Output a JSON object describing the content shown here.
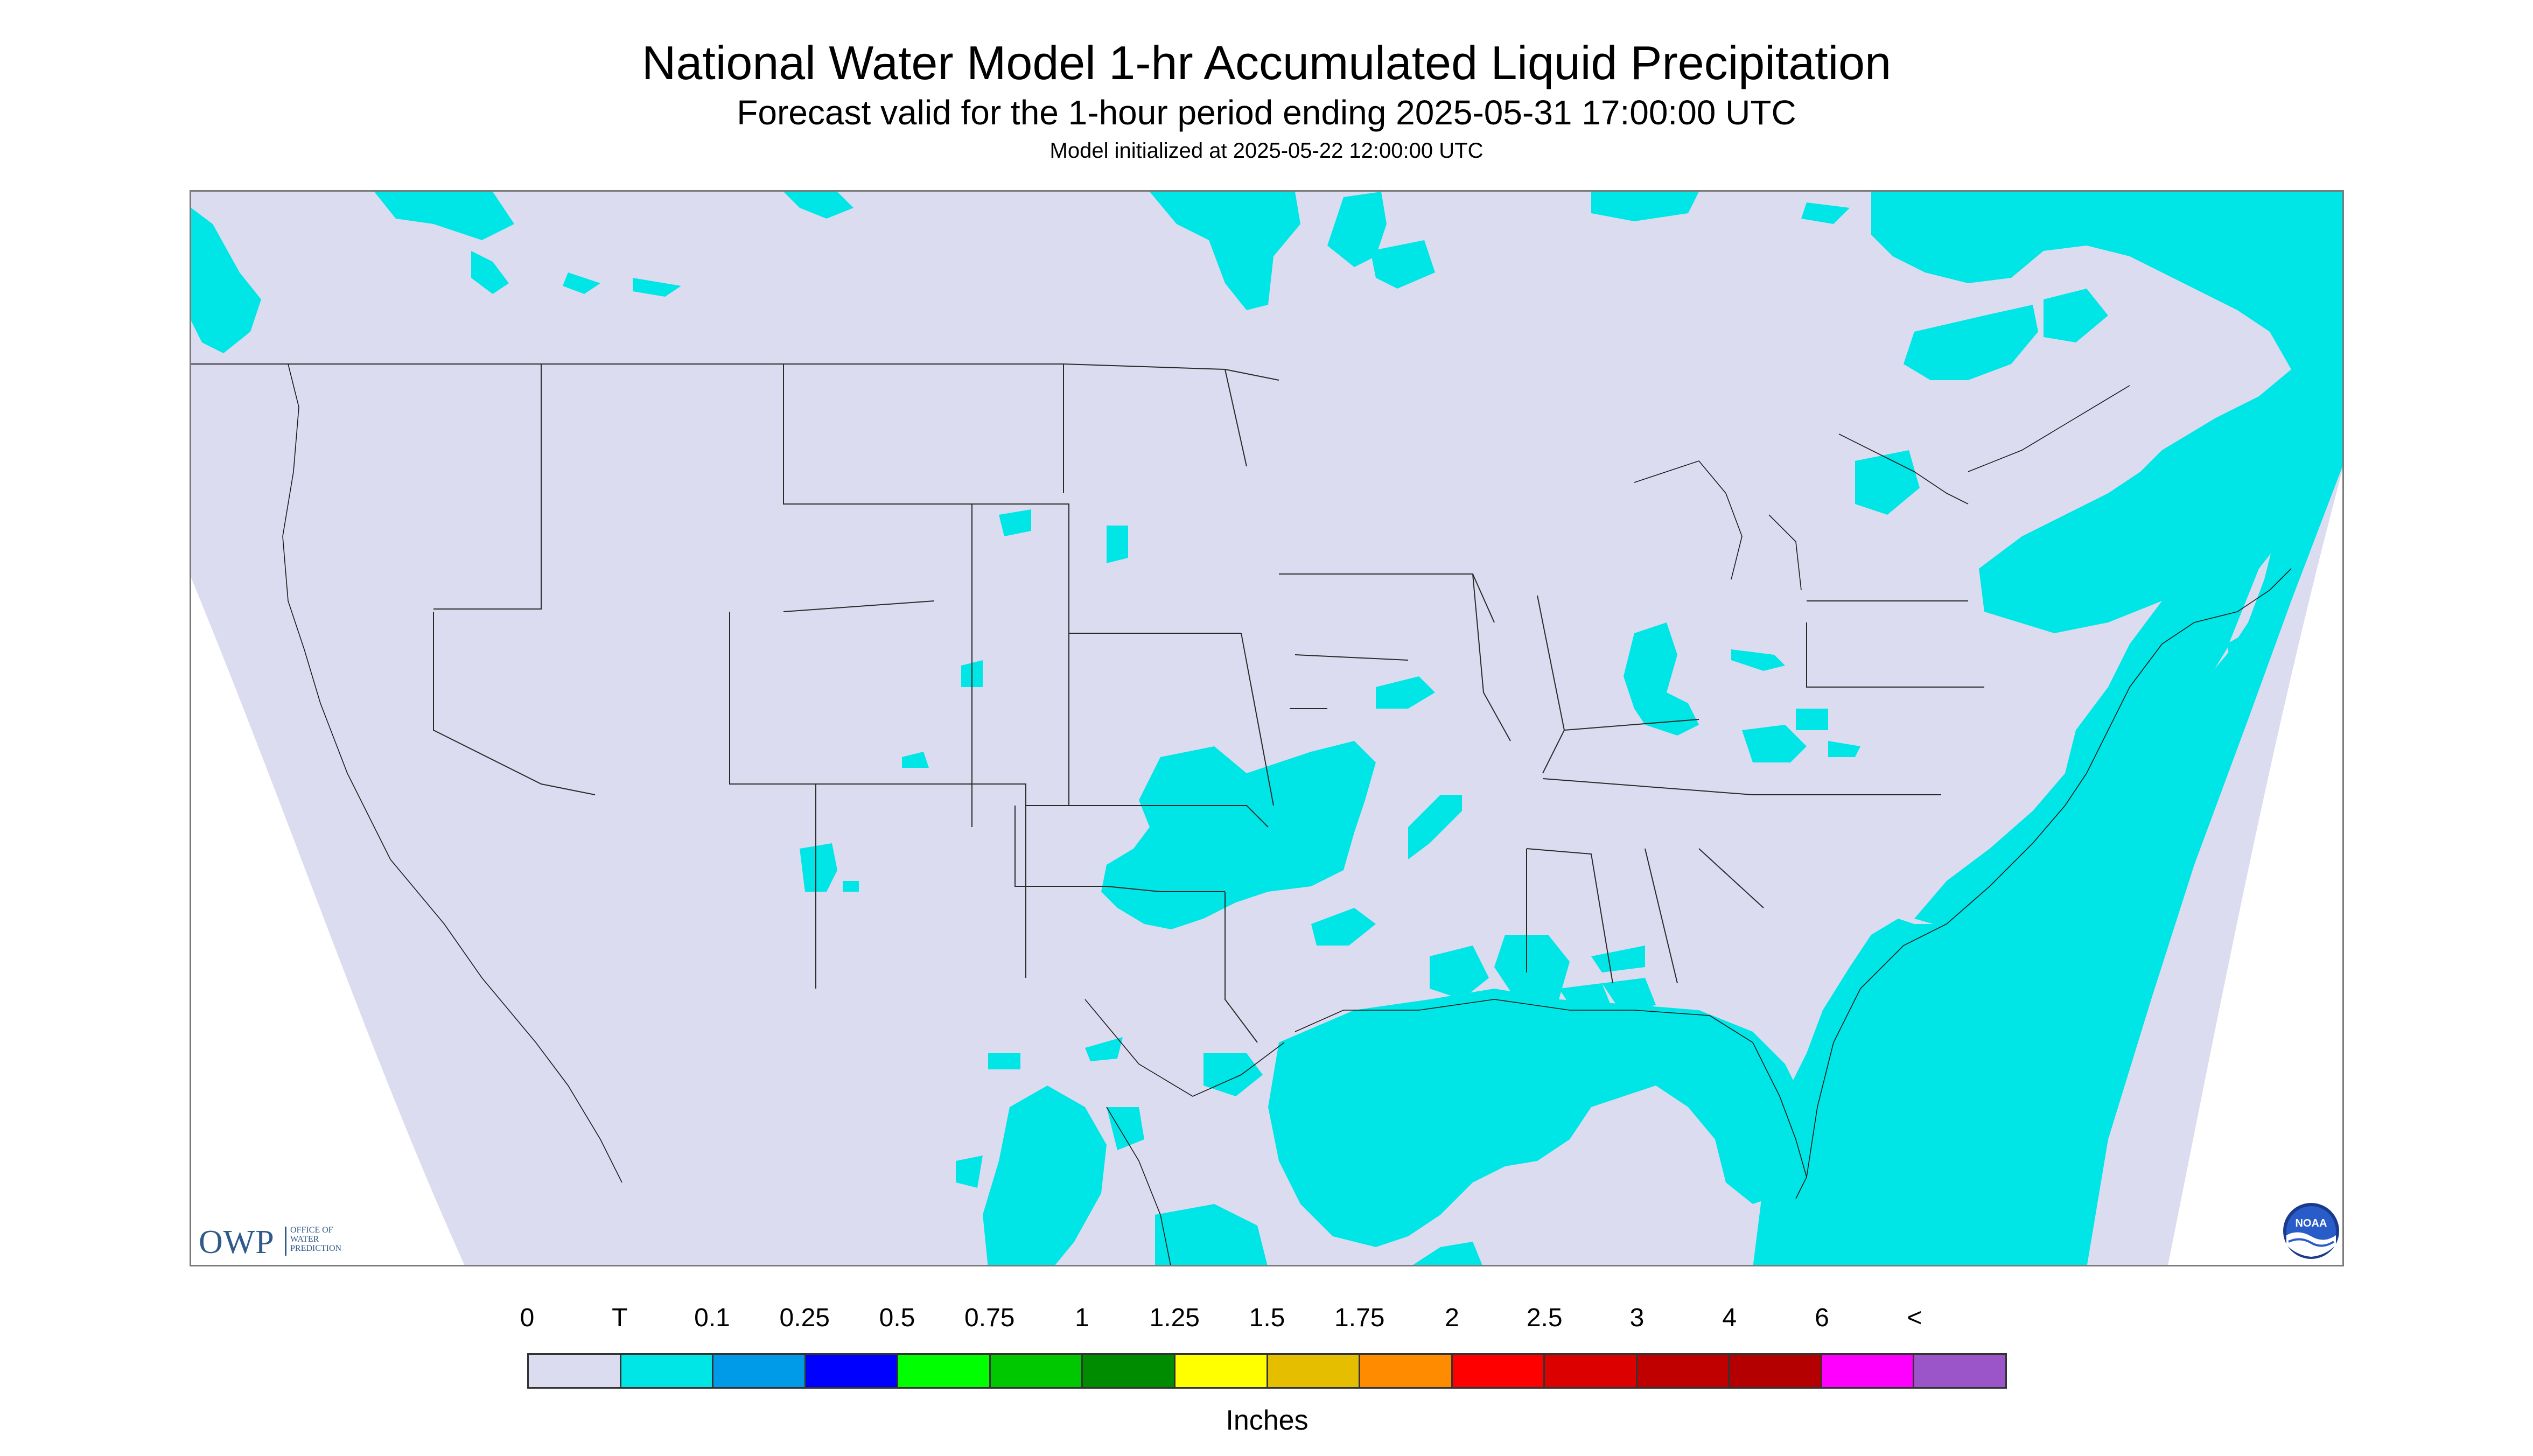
{
  "header": {
    "title": "National Water Model 1-hr Accumulated Liquid Precipitation",
    "subtitle": "Forecast valid for the 1-hour period ending 2025-05-31 17:00:00 UTC",
    "init_line": "Model initialized at 2025-05-22 12:00:00 UTC"
  },
  "map": {
    "projection": "Lambert Conformal (CONUS)",
    "background_color": "#DCDCF0",
    "outside_color": "#FFFFFF",
    "trace_color": "#00E5E5",
    "precip_areas": [
      "southern Canada / northwest",
      "northeast US and southeast Canada",
      "Atlantic Ocean east of US coast",
      "Gulf of Mexico",
      "Oklahoma / Arkansas",
      "Ohio Valley",
      "South Dakota",
      "New Mexico",
      "eastern Mexico"
    ]
  },
  "logos": {
    "owp_letters": "OWP",
    "owp_subtext": [
      "OFFICE OF",
      "WATER",
      "PREDICTION"
    ],
    "noaa_text": "NOAA"
  },
  "legend": {
    "labels": [
      "0",
      "T",
      "0.1",
      "0.25",
      "0.5",
      "0.75",
      "1",
      "1.25",
      "1.5",
      "1.75",
      "2",
      "2.5",
      "3",
      "4",
      "6",
      "<"
    ],
    "colors": [
      "#DCDCF0",
      "#00E5E5",
      "#009BE8",
      "#0000FF",
      "#00FF00",
      "#00C800",
      "#008C00",
      "#FFFF00",
      "#E6BE00",
      "#FF8C00",
      "#FF0000",
      "#DC0000",
      "#C00000",
      "#B40000",
      "#FF00FF",
      "#9B55C8"
    ],
    "units": "Inches"
  }
}
